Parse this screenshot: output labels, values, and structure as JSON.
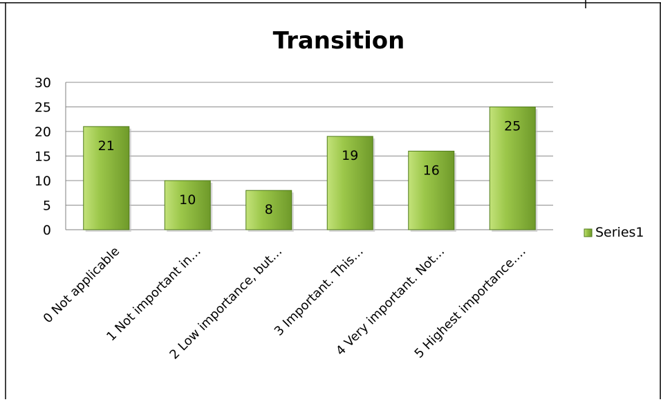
{
  "chart_data": {
    "type": "bar",
    "title": "Transition",
    "categories": [
      "0 Not applicable",
      "1 Not important in…",
      "2 Low importance, but…",
      "3 Important. This…",
      "4 Very important. Not…",
      "5 Highest importance.…"
    ],
    "series": [
      {
        "name": "Series1",
        "values": [
          21,
          10,
          8,
          19,
          16,
          25
        ]
      }
    ],
    "yticks": [
      0,
      5,
      10,
      15,
      20,
      25,
      30
    ],
    "ylim": [
      0,
      30
    ],
    "xlabel": "",
    "ylabel": "",
    "grid": true,
    "legend_position": "right",
    "colors": {
      "bar_light": "#c3e27a",
      "bar_mid": "#9cc74a",
      "bar_dark": "#6f9a2a",
      "bar_edge": "#4f7a1a",
      "gridline": "#8c8c8c",
      "axis": "#7f7f7f",
      "text": "#000000"
    }
  }
}
